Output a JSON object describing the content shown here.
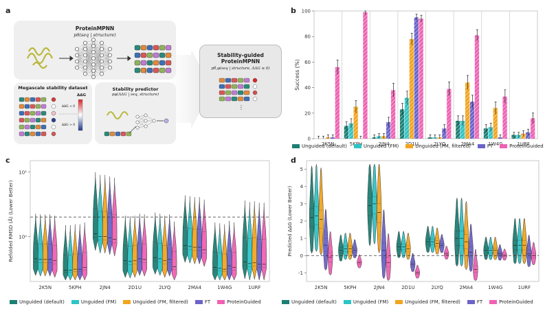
{
  "panel_labels": {
    "a": "a",
    "b": "b",
    "c": "c",
    "d": "d"
  },
  "panel_a": {
    "pmpnn_title": "ProteinMPNN",
    "pmpnn_formula": "pθ(seq | structure)",
    "mega_title": "Megascale stability dataset",
    "ddg_label": "ΔΔG",
    "ddg_neg": "ΔΔG < 0",
    "ddg_pos": "ΔΔG > 0",
    "pred_title": "Stability predictor",
    "pred_formula": "pφ(ΔΔG | seq, structure)",
    "guided_title1": "Stability-guided",
    "guided_title2": "ProteinMPNN",
    "guided_formula": "pθ,φ(seq | structure, ΔΔG ≤ 0)",
    "dots": "⋮"
  },
  "colors": {
    "unguided_default": "#1d7f74",
    "unguided_fm": "#2ec4c6",
    "unguided_fm_filtered": "#f2a51f",
    "ft": "#6c63c9",
    "protein_guided": "#ef62b3"
  },
  "legend_items": [
    {
      "key": "unguided_default",
      "label": "Unguided (default)"
    },
    {
      "key": "unguided_fm",
      "label": "Unguided (FM)"
    },
    {
      "key": "unguided_fm_filtered",
      "label": "Unguided (FM, filtered)"
    },
    {
      "key": "ft",
      "label": "FT"
    },
    {
      "key": "protein_guided",
      "label": "ProteinGuided"
    }
  ],
  "chart_data": [
    {
      "panel": "b",
      "type": "bar",
      "ylabel": "Success (%)",
      "ylim": [
        0,
        100
      ],
      "yticks": [
        0,
        20,
        40,
        60,
        80,
        100
      ],
      "categories": [
        "2K5N",
        "5KPH",
        "2JN4",
        "2D1U",
        "2LYQ",
        "2MA4",
        "1W4G",
        "1URF"
      ],
      "series": [
        {
          "name": "Unguided (default)",
          "values": [
            0,
            10,
            1,
            23,
            1,
            14,
            8,
            3
          ]
        },
        {
          "name": "Unguided (FM)",
          "values": [
            0,
            12,
            2,
            32,
            1,
            14,
            9,
            3
          ]
        },
        {
          "name": "Unguided (FM, filtered)",
          "values": [
            1,
            25,
            2,
            78,
            1,
            44,
            24,
            4
          ]
        },
        {
          "name": "FT",
          "values": [
            1,
            0,
            13,
            95,
            8,
            29,
            1,
            5
          ]
        },
        {
          "name": "ProteinGuided",
          "values": [
            56,
            99,
            38,
            94,
            39,
            81,
            33,
            16
          ]
        }
      ]
    },
    {
      "panel": "c",
      "type": "violin",
      "ylabel": "Refolded RMSD (Å) (Lower Better)",
      "yscale": "log",
      "ylim": [
        0.2,
        15
      ],
      "ytick_labels": [
        "10⁰",
        "10¹"
      ],
      "ytick_values": [
        1,
        10
      ],
      "reference_line": 2.0,
      "categories": [
        "2K5N",
        "5KPH",
        "2JN4",
        "2D1U",
        "2LYQ",
        "2MA4",
        "1W4G",
        "1URF"
      ],
      "medians": [
        [
          0.45,
          0.3,
          1.1,
          0.42,
          0.47,
          0.72,
          0.33,
          0.4
        ],
        [
          0.44,
          0.3,
          1.0,
          0.41,
          0.45,
          0.7,
          0.32,
          0.38
        ],
        [
          0.44,
          0.31,
          1.0,
          0.42,
          0.42,
          0.68,
          0.31,
          0.39
        ],
        [
          0.44,
          0.31,
          0.95,
          0.45,
          0.44,
          0.68,
          0.35,
          0.37
        ],
        [
          0.42,
          0.33,
          0.9,
          0.44,
          0.34,
          0.62,
          0.33,
          0.37
        ]
      ]
    },
    {
      "panel": "d",
      "type": "violin",
      "ylabel": "Predicted ΔΔG (Lower Better)",
      "ylim": [
        -1.5,
        5.5
      ],
      "yticks": [
        -1,
        0,
        1,
        2,
        3,
        4,
        5
      ],
      "reference_line": 0,
      "categories": [
        "2K5N",
        "5KPH",
        "2JN4",
        "2D1U",
        "2LYQ",
        "2MA4",
        "1W4G",
        "1URF"
      ],
      "medians": [
        [
          2.2,
          0.3,
          2.9,
          0.5,
          0.8,
          1.0,
          0.3,
          0.6
        ],
        [
          2.3,
          0.4,
          3.0,
          0.5,
          0.8,
          1.0,
          0.3,
          0.6
        ],
        [
          2.1,
          0.4,
          2.5,
          0.4,
          0.7,
          0.8,
          0.3,
          0.6
        ],
        [
          0.6,
          0.3,
          0.3,
          -0.5,
          0.6,
          0.2,
          0.1,
          0.1
        ],
        [
          -0.1,
          -0.4,
          -0.4,
          -1.0,
          0.1,
          -0.8,
          0.0,
          0.0
        ]
      ]
    }
  ]
}
